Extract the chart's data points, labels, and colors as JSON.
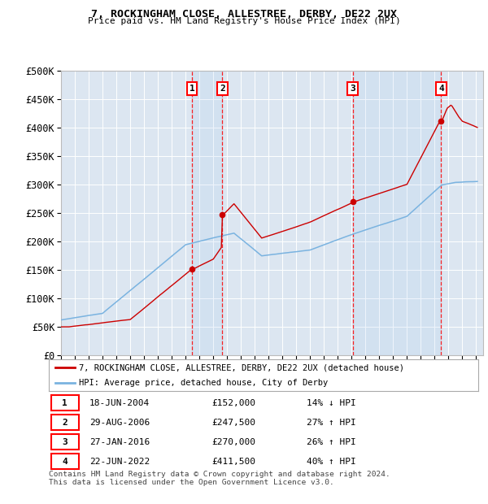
{
  "title1": "7, ROCKINGHAM CLOSE, ALLESTREE, DERBY, DE22 2UX",
  "title2": "Price paid vs. HM Land Registry's House Price Index (HPI)",
  "ylim": [
    0,
    500000
  ],
  "yticks": [
    0,
    50000,
    100000,
    150000,
    200000,
    250000,
    300000,
    350000,
    400000,
    450000,
    500000
  ],
  "ytick_labels": [
    "£0",
    "£50K",
    "£100K",
    "£150K",
    "£200K",
    "£250K",
    "£300K",
    "£350K",
    "£400K",
    "£450K",
    "£500K"
  ],
  "bg_color": "#dce6f1",
  "fig_bg_color": "#ffffff",
  "hpi_color": "#7ab3e0",
  "price_color": "#cc0000",
  "sale_decimal_dates": [
    2004.46,
    2006.66,
    2016.07,
    2022.47
  ],
  "sale_prices": [
    152000,
    247500,
    270000,
    411500
  ],
  "sale_labels": [
    "1",
    "2",
    "3",
    "4"
  ],
  "sale_pct": [
    "14% ↓ HPI",
    "27% ↑ HPI",
    "26% ↑ HPI",
    "40% ↑ HPI"
  ],
  "sale_date_strs": [
    "18-JUN-2004",
    "29-AUG-2006",
    "27-JAN-2016",
    "22-JUN-2022"
  ],
  "sale_prices_fmt": [
    "£152,000",
    "£247,500",
    "£270,000",
    "£411,500"
  ],
  "legend_line1": "7, ROCKINGHAM CLOSE, ALLESTREE, DERBY, DE22 2UX (detached house)",
  "legend_line2": "HPI: Average price, detached house, City of Derby",
  "footnote1": "Contains HM Land Registry data © Crown copyright and database right 2024.",
  "footnote2": "This data is licensed under the Open Government Licence v3.0.",
  "xstart_year": 1995,
  "xend_year": 2025
}
